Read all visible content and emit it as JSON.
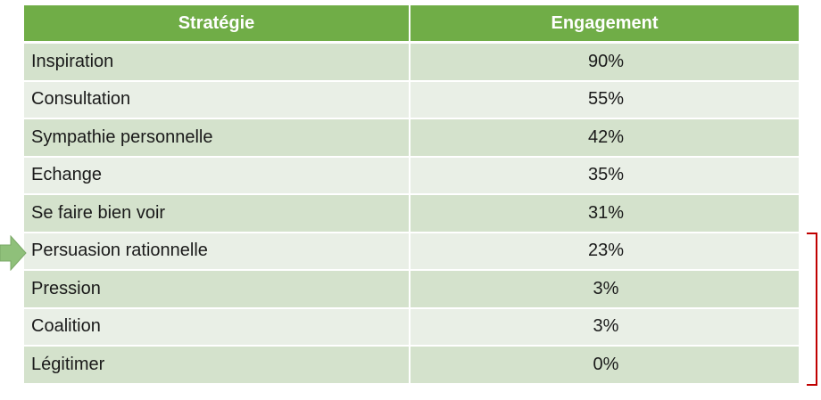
{
  "table": {
    "headers": [
      "Stratégie",
      "Engagement"
    ],
    "rows": [
      {
        "strategy": "Inspiration",
        "engagement": "90%"
      },
      {
        "strategy": "Consultation",
        "engagement": "55%"
      },
      {
        "strategy": "Sympathie personnelle",
        "engagement": "42%"
      },
      {
        "strategy": "Echange",
        "engagement": "35%"
      },
      {
        "strategy": "Se faire bien voir",
        "engagement": "31%"
      },
      {
        "strategy": "Persuasion rationnelle",
        "engagement": "23%"
      },
      {
        "strategy": "Pression",
        "engagement": "3%"
      },
      {
        "strategy": "Coalition",
        "engagement": "3%"
      },
      {
        "strategy": "Légitimer",
        "engagement": "0%"
      }
    ]
  },
  "colors": {
    "header": "#70ad47",
    "row_odd": "#d4e2cc",
    "row_even": "#e9efe6",
    "arrow": "#8fc07a",
    "bracket": "#c00000"
  },
  "icons": {
    "pointer": "right-arrow-icon",
    "group_marker": "bracket-icon"
  }
}
